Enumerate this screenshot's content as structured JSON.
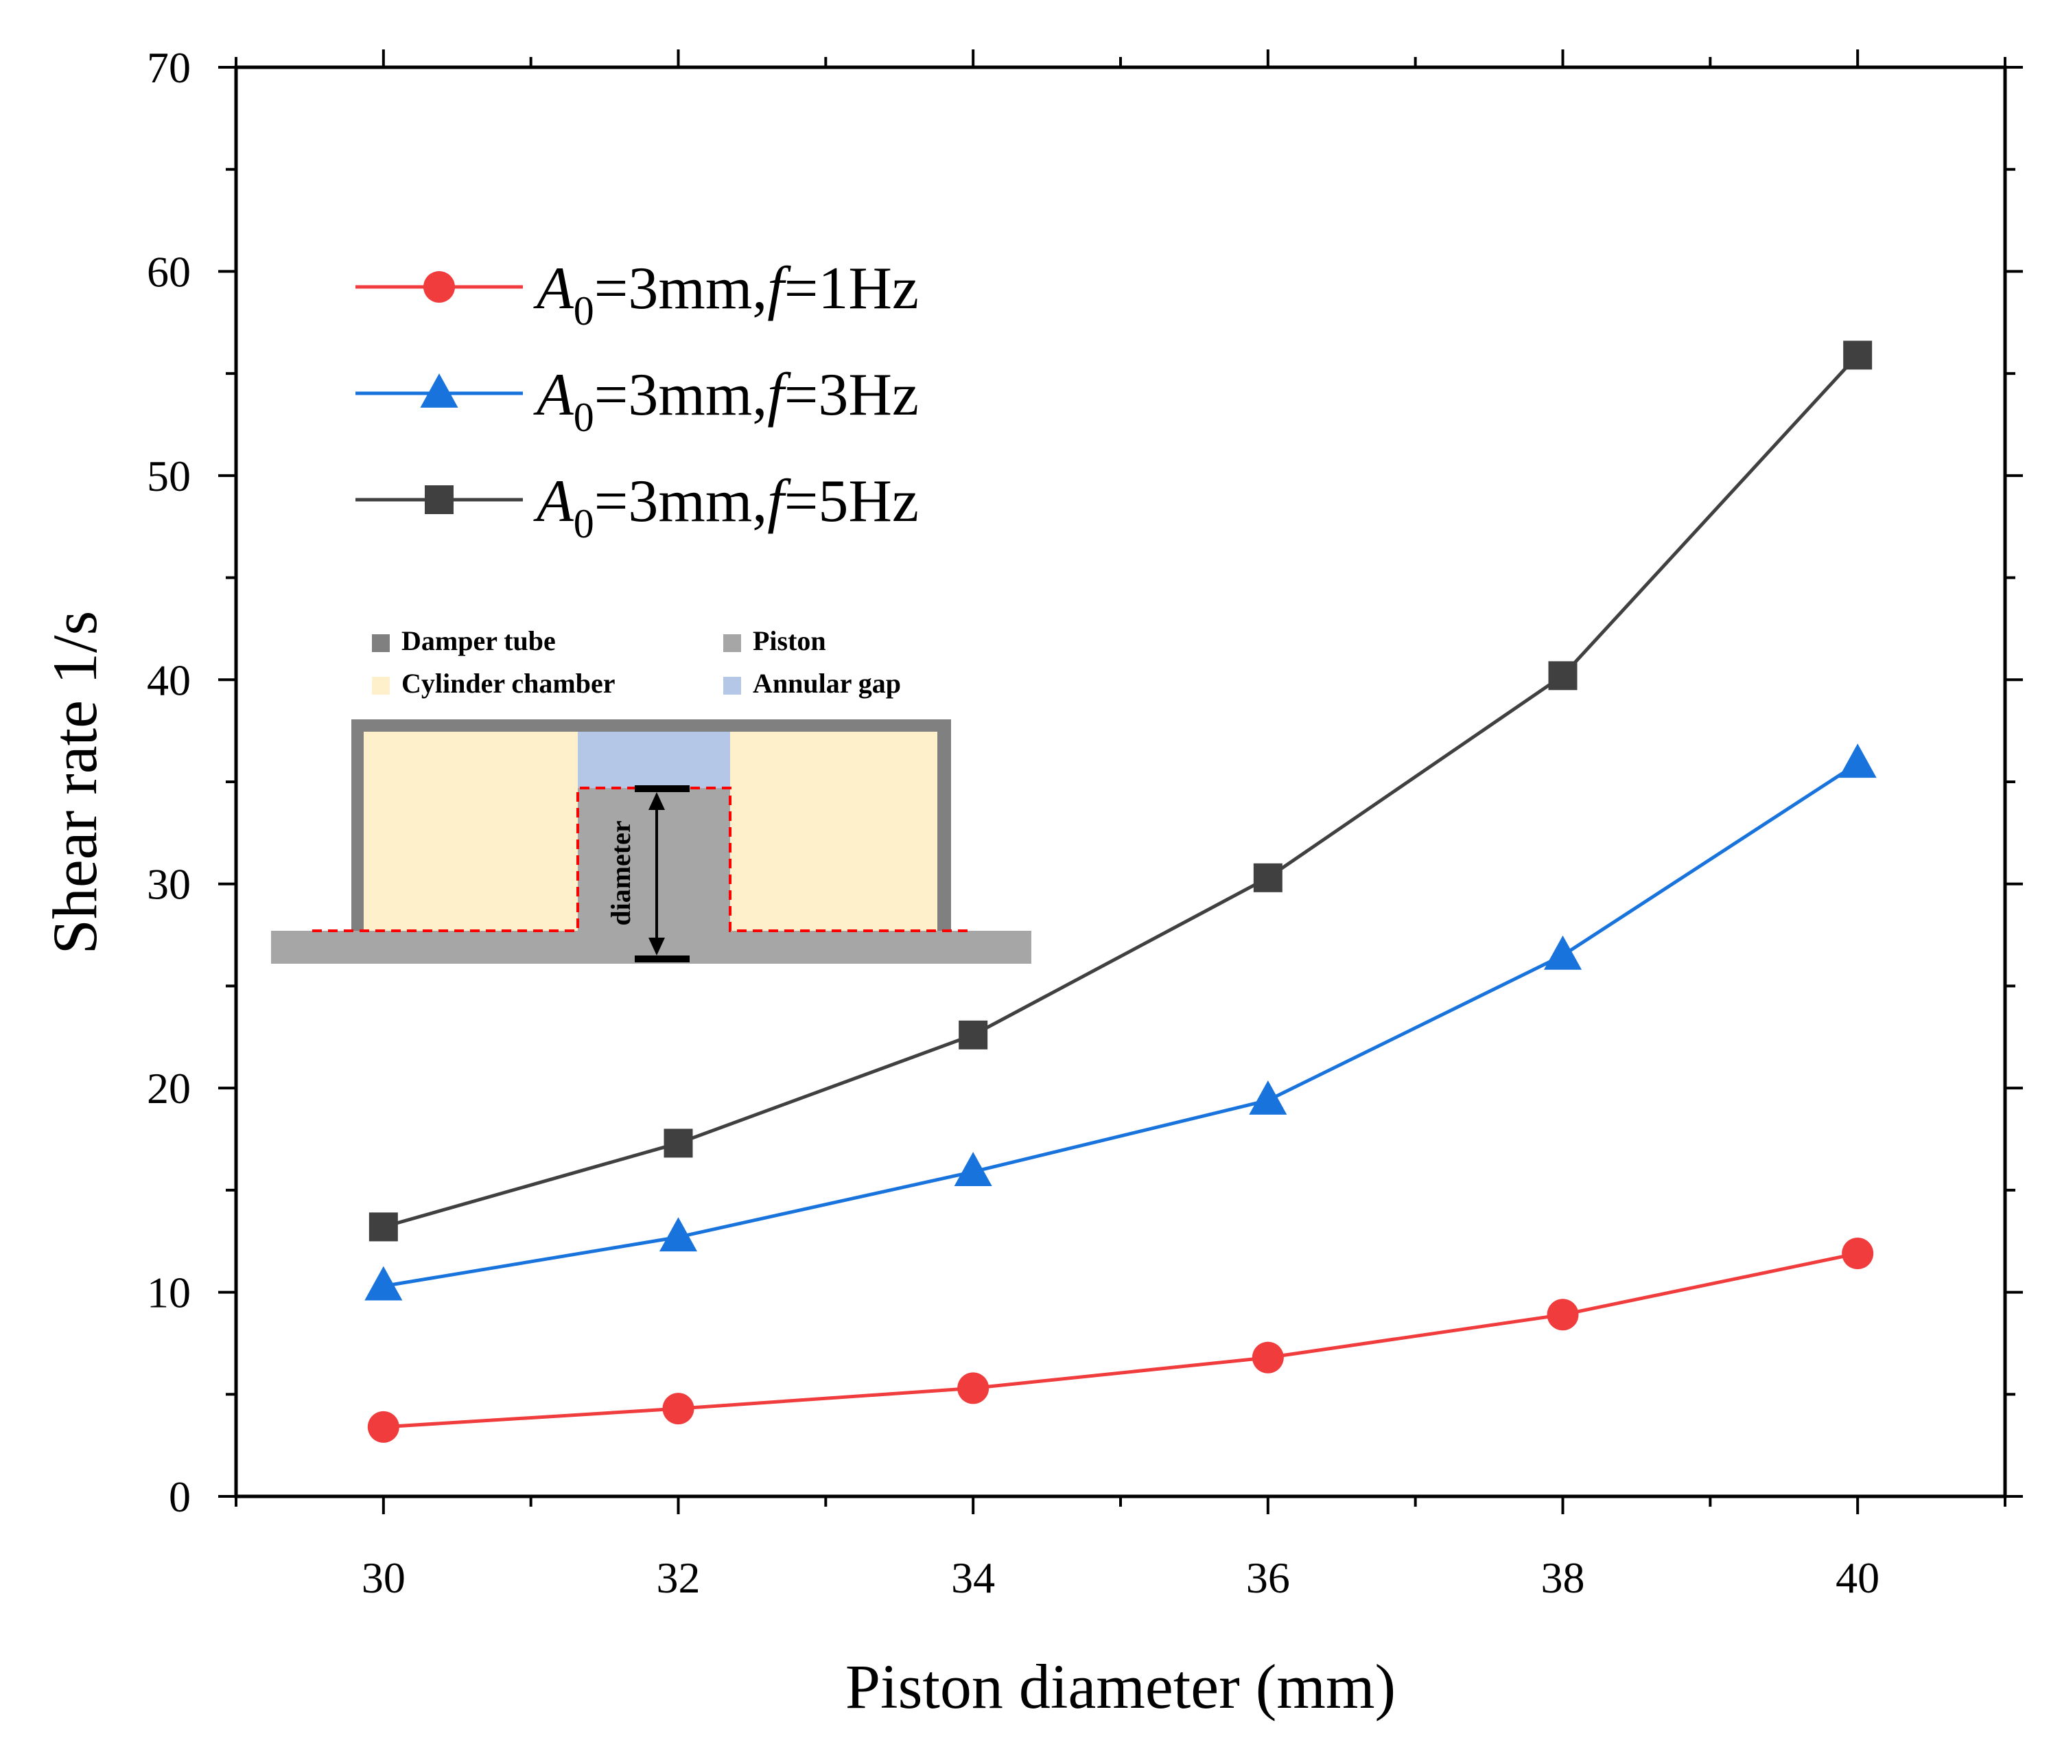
{
  "chart_data": {
    "type": "line",
    "title": "",
    "xlabel": "Piston diameter (mm)",
    "ylabel": "Shear rate 1/s",
    "xlim": [
      29,
      41
    ],
    "ylim": [
      0,
      70
    ],
    "xticks": [
      30,
      32,
      34,
      36,
      38,
      40
    ],
    "xtick_labels": [
      "30",
      "32",
      "34",
      "36",
      "38",
      "40"
    ],
    "yticks": [
      0,
      10,
      20,
      30,
      40,
      50,
      60,
      70
    ],
    "ytick_labels": [
      "0",
      "10",
      "20",
      "30",
      "40",
      "50",
      "60",
      "70"
    ],
    "x": [
      30,
      32,
      34,
      36,
      38,
      40
    ],
    "legend_position": "top-left",
    "series": [
      {
        "name": "A0=3mm,f=1Hz",
        "label_parts": {
          "a": "A",
          "sub": "0",
          "mid": "=3mm,",
          "f": "f",
          "rest": "=1Hz"
        },
        "marker": "circle",
        "color": "#F03C3C",
        "values": [
          3.4,
          4.3,
          5.3,
          6.8,
          8.9,
          11.9
        ]
      },
      {
        "name": "A0=3mm,f=3Hz",
        "label_parts": {
          "a": "A",
          "sub": "0",
          "mid": "=3mm,",
          "f": "f",
          "rest": "=3Hz"
        },
        "marker": "triangle",
        "color": "#1874DC",
        "values": [
          10.3,
          12.7,
          15.9,
          19.4,
          26.5,
          35.9
        ]
      },
      {
        "name": "A0=3mm,f=5Hz",
        "label_parts": {
          "a": "A",
          "sub": "0",
          "mid": "=3mm,",
          "f": "f",
          "rest": "=5Hz"
        },
        "marker": "square",
        "color": "#404040",
        "values": [
          13.2,
          17.3,
          22.6,
          30.3,
          40.2,
          55.9
        ]
      }
    ]
  },
  "inset": {
    "legend": [
      {
        "label": "Damper tube",
        "color": "#808080"
      },
      {
        "label": "Piston",
        "color": "#A6A6A6"
      },
      {
        "label": "Cylinder chamber",
        "color": "#FFF0CC"
      },
      {
        "label": "Annular gap",
        "color": "#B4C7E7"
      }
    ],
    "dimension_label": "diameter",
    "dash_color": "#FF0000"
  }
}
